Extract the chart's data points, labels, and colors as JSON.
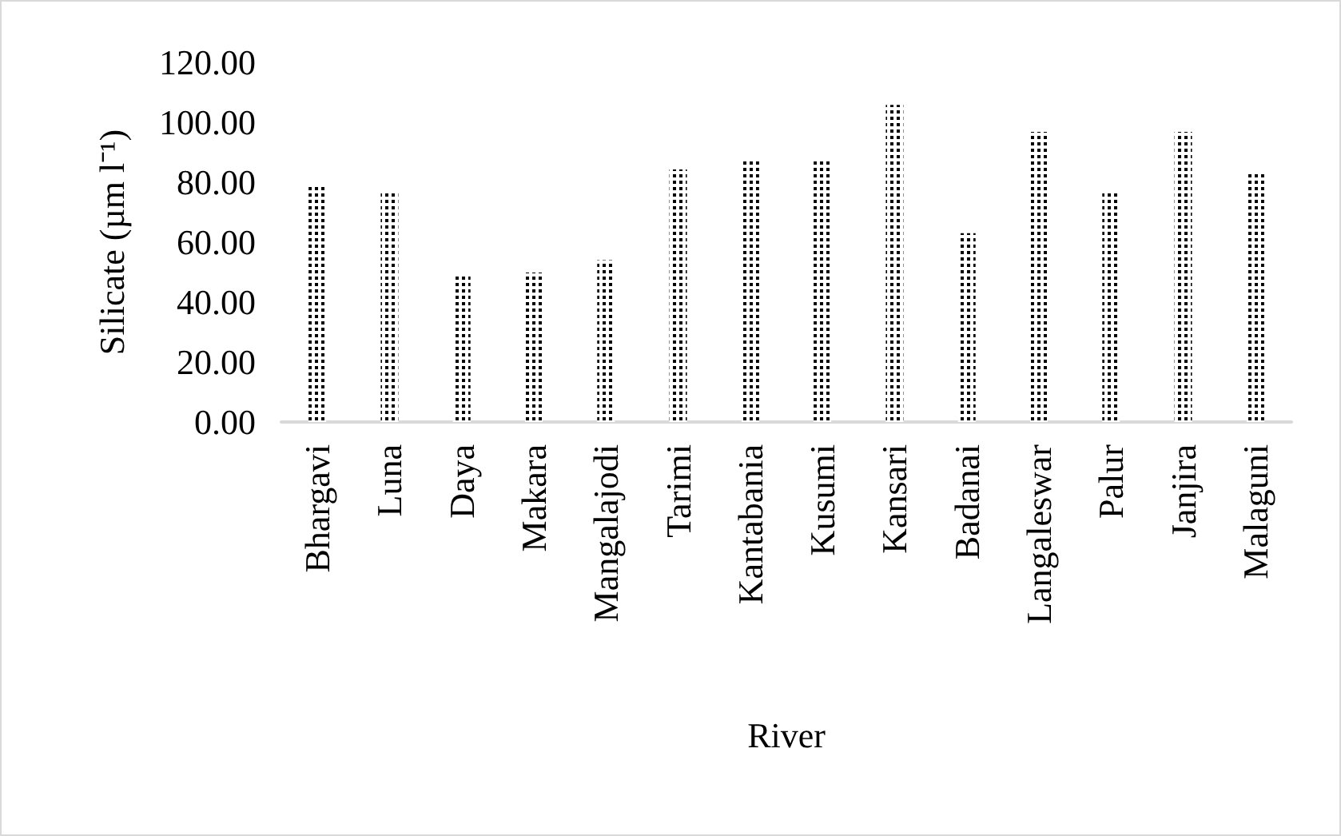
{
  "chart_data": {
    "type": "bar",
    "xlabel": "River",
    "ylabel": "Silicate (µm l⁻¹)",
    "categories": [
      "Bhargavi",
      "Luna",
      "Daya",
      "Makara",
      "Mangalajodi",
      "Tarimi",
      "Kantabania",
      "Kusumi",
      "Kansari",
      "Badanai",
      "Langaleswar",
      "Palur",
      "Janjira",
      "Malaguni"
    ],
    "values": [
      78.4,
      77,
      49,
      49.9,
      54,
      84.3,
      87.8,
      87.8,
      105.8,
      63,
      96.8,
      76.7,
      96.8,
      83.4
    ],
    "color": "#000000",
    "ylim": [
      0,
      120
    ],
    "yticks": [
      {
        "value": 0,
        "label": "0.00"
      },
      {
        "value": 20,
        "label": "20.00"
      },
      {
        "value": 40,
        "label": "40.00"
      },
      {
        "value": 60,
        "label": "60.00"
      },
      {
        "value": 80,
        "label": "80.00"
      },
      {
        "value": 100,
        "label": "100.00"
      },
      {
        "value": 120,
        "label": "120.00"
      }
    ],
    "grid": false
  }
}
